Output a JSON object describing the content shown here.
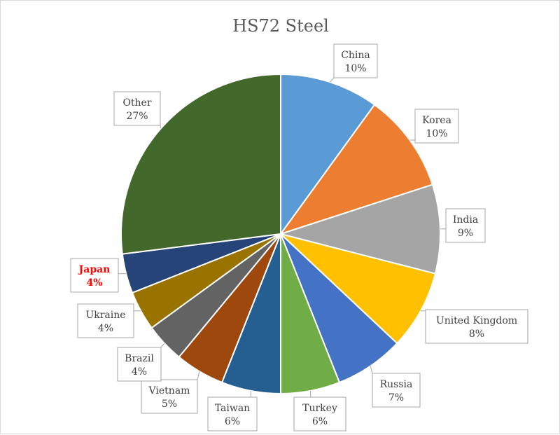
{
  "chart_data": {
    "type": "pie",
    "title": "HS72 Steel",
    "slices": [
      {
        "label": "China",
        "value": 10,
        "value_label": "10%",
        "color": "#5b9bd5"
      },
      {
        "label": "Korea",
        "value": 10,
        "value_label": "10%",
        "color": "#ed7d31"
      },
      {
        "label": "India",
        "value": 9,
        "value_label": "9%",
        "color": "#a5a5a5"
      },
      {
        "label": "United Kingdom",
        "value": 8,
        "value_label": "8%",
        "color": "#ffc000"
      },
      {
        "label": "Russia",
        "value": 7,
        "value_label": "7%",
        "color": "#4472c4"
      },
      {
        "label": "Turkey",
        "value": 6,
        "value_label": "6%",
        "color": "#70ad47"
      },
      {
        "label": "Taiwan",
        "value": 6,
        "value_label": "6%",
        "color": "#255e91"
      },
      {
        "label": "Vietnam",
        "value": 5,
        "value_label": "5%",
        "color": "#9e480e"
      },
      {
        "label": "Brazil",
        "value": 4,
        "value_label": "4%",
        "color": "#636363"
      },
      {
        "label": "Ukraine",
        "value": 4,
        "value_label": "4%",
        "color": "#997300"
      },
      {
        "label": "Japan",
        "value": 4,
        "value_label": "4%",
        "color": "#264478",
        "label_color": "#ff0000",
        "label_bold": true
      },
      {
        "label": "Other",
        "value": 27,
        "value_label": "27%",
        "color": "#43682b"
      }
    ]
  }
}
